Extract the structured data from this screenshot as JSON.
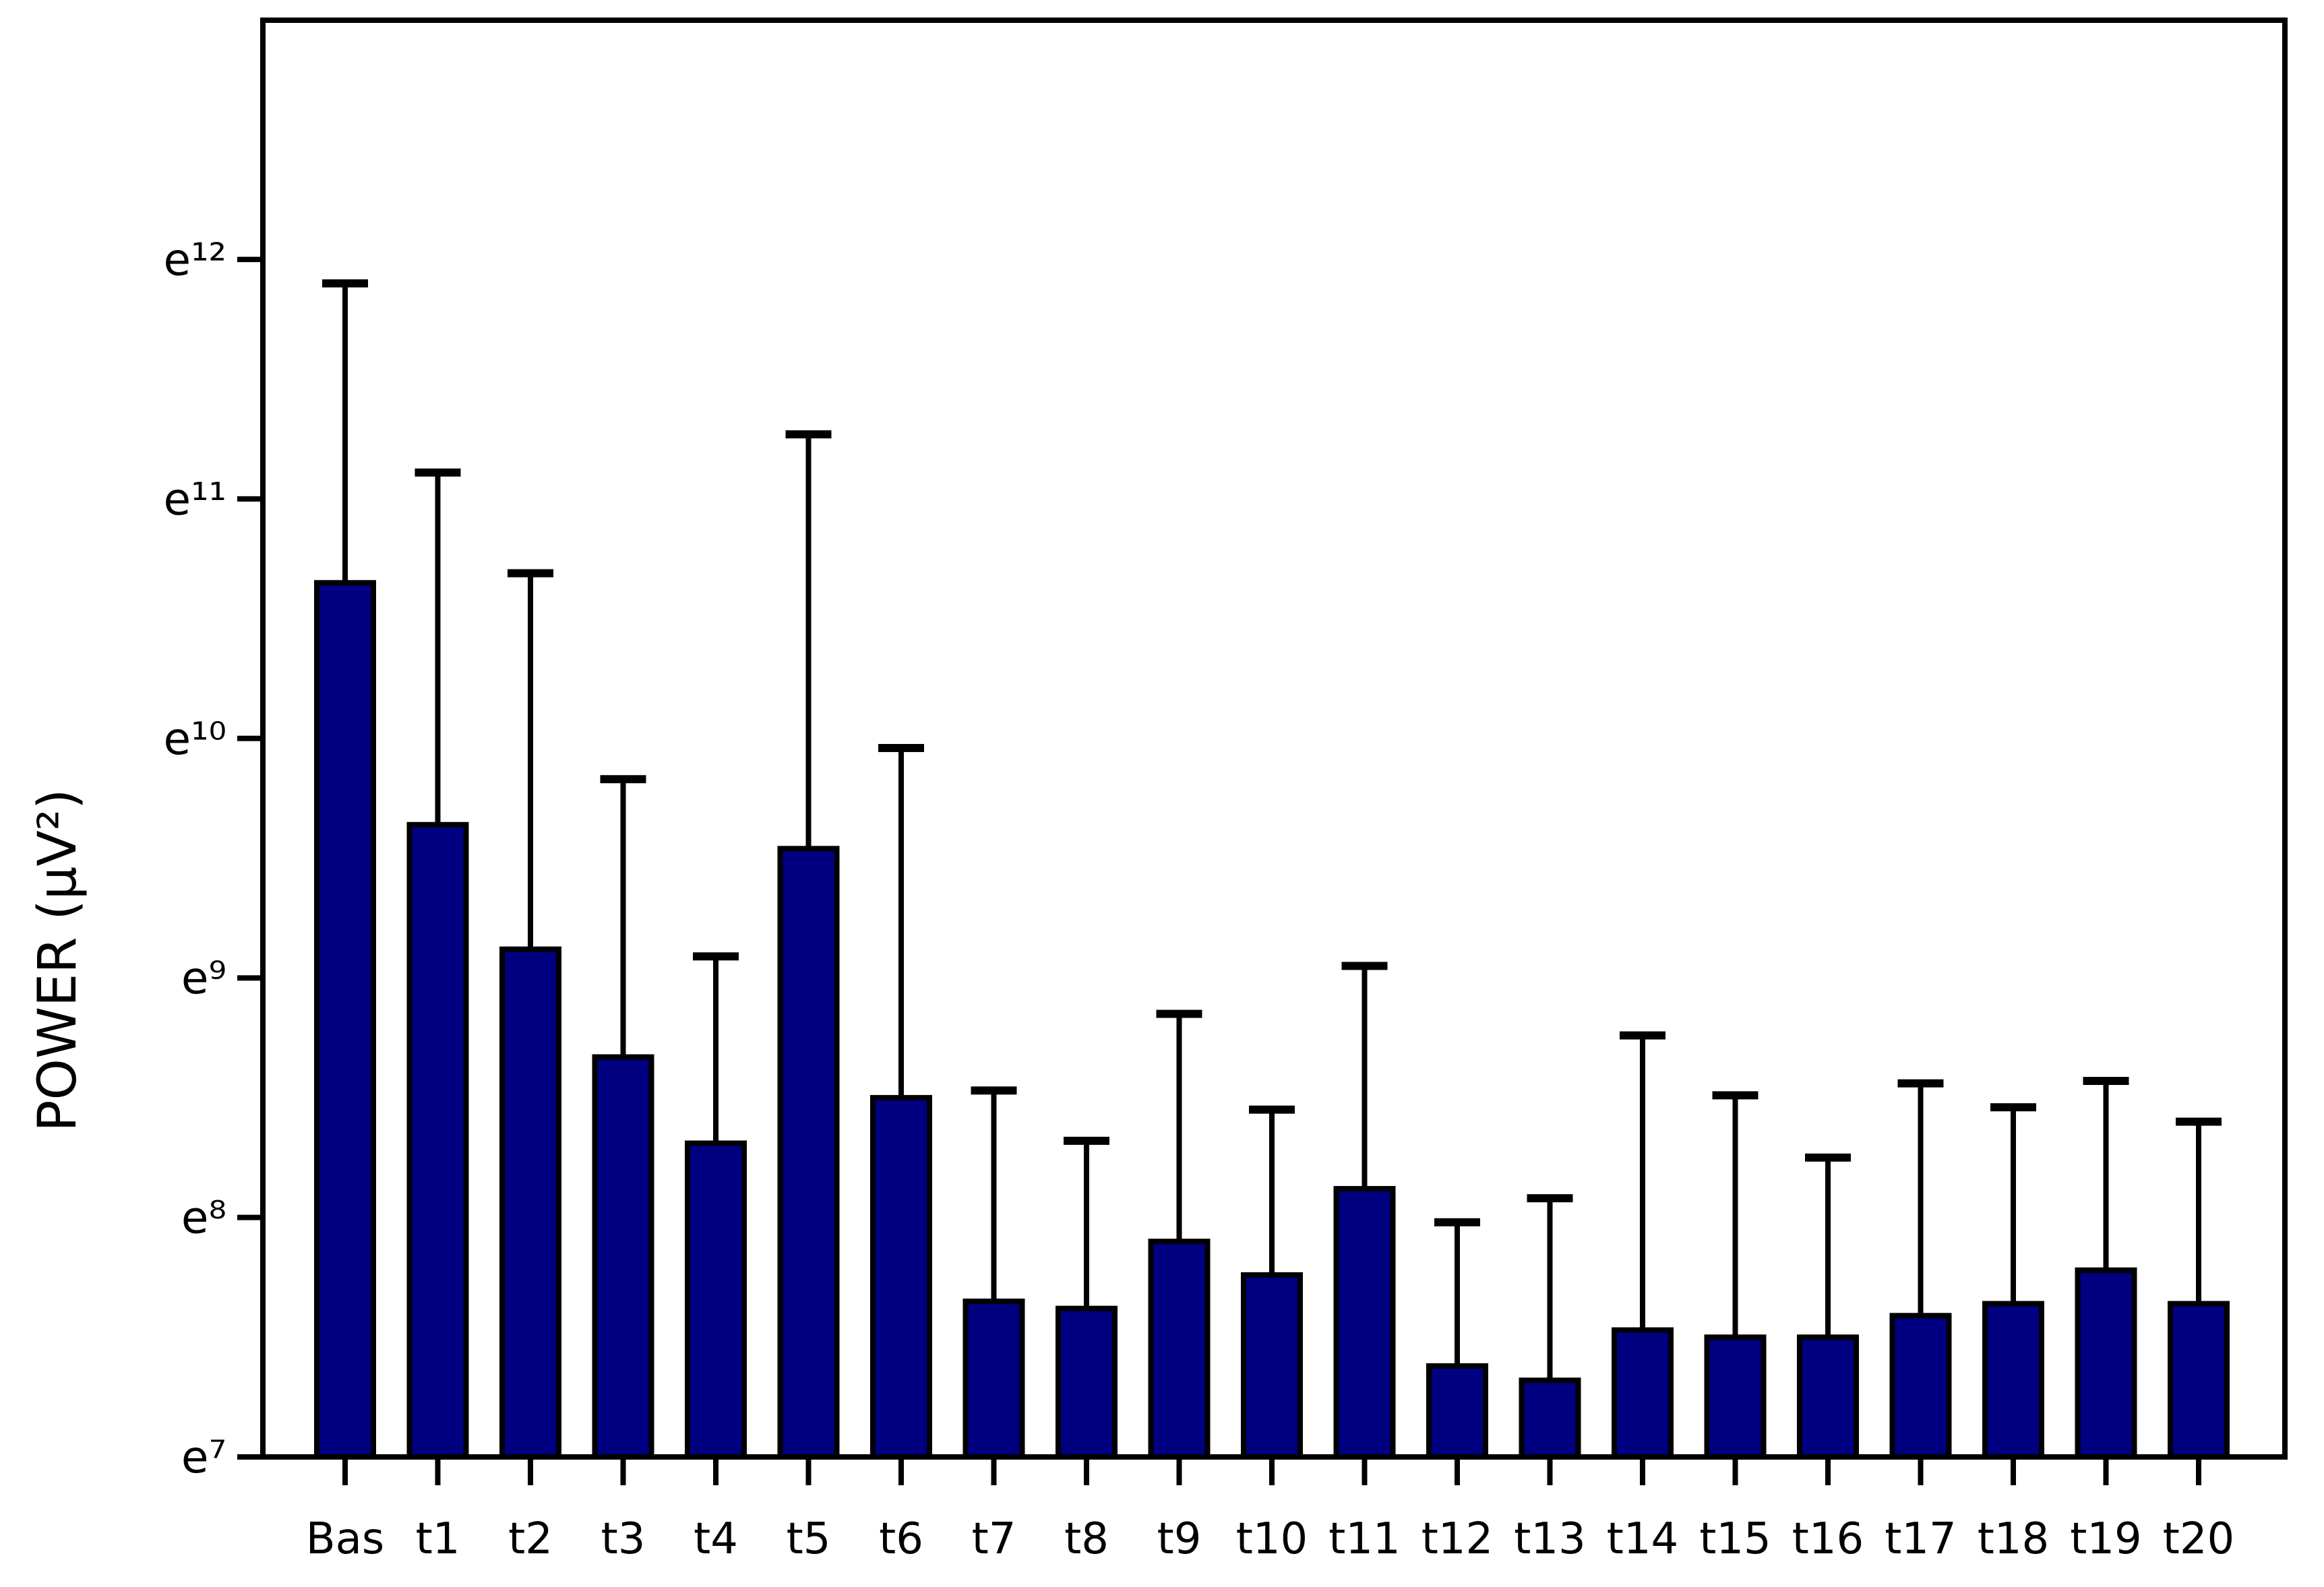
{
  "chart_data": {
    "type": "bar",
    "title": "",
    "xlabel": "",
    "ylabel": "POWER  (μV²)",
    "y_scale": "natural-log; tick labels are powers of e",
    "categories": [
      "Bas",
      "t1",
      "t2",
      "t3",
      "t4",
      "t5",
      "t6",
      "t7",
      "t8",
      "t9",
      "t10",
      "t11",
      "t12",
      "t13",
      "t14",
      "t15",
      "t16",
      "t17",
      "t18",
      "t19",
      "t20"
    ],
    "values_exponent": [
      10.65,
      9.64,
      9.12,
      8.67,
      8.31,
      9.54,
      8.5,
      7.65,
      7.62,
      7.9,
      7.76,
      8.12,
      7.38,
      7.32,
      7.53,
      7.5,
      7.5,
      7.59,
      7.64,
      7.78,
      7.64
    ],
    "upper_error_exponent": [
      11.9,
      11.11,
      10.69,
      9.83,
      9.09,
      11.27,
      9.96,
      8.53,
      8.32,
      8.85,
      8.45,
      9.05,
      7.98,
      8.08,
      8.76,
      8.51,
      8.25,
      8.56,
      8.46,
      8.57,
      8.4
    ],
    "y_tick_labels": [
      "e⁷",
      "e⁸",
      "e⁹",
      "e¹⁰",
      "e¹¹",
      "e¹²"
    ],
    "y_tick_exponents": [
      7,
      8,
      9,
      10,
      11,
      12
    ],
    "ylim_exponents": [
      7,
      13.0
    ],
    "bar_color": "#000080",
    "bar_outline_color": "#000000",
    "error_bar_color": "#000000",
    "axis_color": "#000000",
    "background_color": "#ffffff",
    "legend": "none",
    "grid": "off"
  }
}
